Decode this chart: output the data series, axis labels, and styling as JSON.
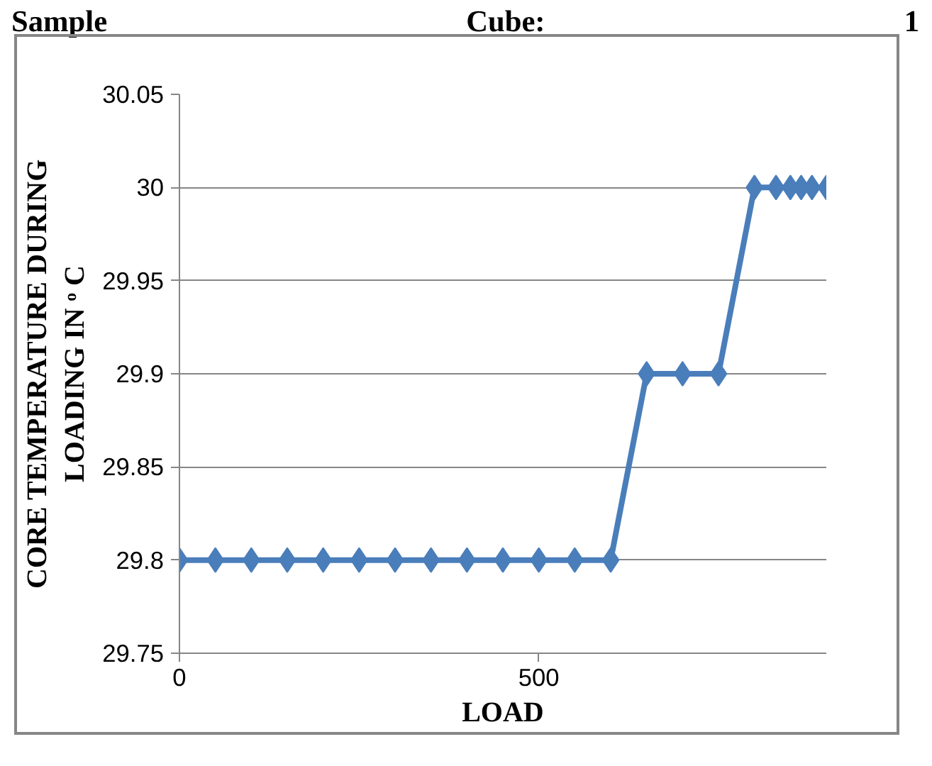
{
  "chart_data": {
    "type": "line",
    "title": "Sample Cube: 1",
    "xlabel": "LOAD",
    "ylabel": "CORE TEMPERATURE DURING LOADING IN ᵒ C",
    "x": [
      0,
      50,
      100,
      150,
      200,
      250,
      300,
      350,
      400,
      450,
      500,
      550,
      600,
      650,
      700,
      750,
      800,
      830,
      850,
      865,
      880,
      900
    ],
    "series": [
      {
        "color": "#4a7ebb",
        "values": [
          29.8,
          29.8,
          29.8,
          29.8,
          29.8,
          29.8,
          29.8,
          29.8,
          29.8,
          29.8,
          29.8,
          29.8,
          29.8,
          29.9,
          29.9,
          29.9,
          30,
          30,
          30,
          30,
          30,
          30
        ]
      }
    ],
    "xlim": [
      0,
      900
    ],
    "xticks": [
      0,
      500
    ],
    "ylim": [
      29.75,
      30.05
    ],
    "yticks": [
      29.75,
      29.8,
      29.85,
      29.9,
      29.95,
      30,
      30.05
    ],
    "grid": "y",
    "marker": "diamond",
    "line_style": "solid"
  }
}
